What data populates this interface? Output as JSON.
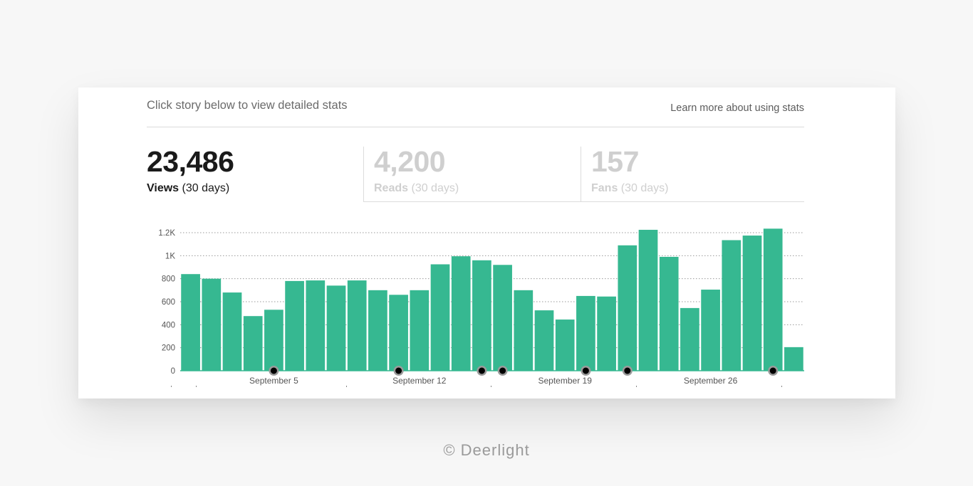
{
  "header": {
    "instruction": "Click story below to view detailed stats",
    "learn_link": "Learn more about using stats"
  },
  "metrics": [
    {
      "value": "23,486",
      "label": "Views",
      "period": "(30 days)"
    },
    {
      "value": "4,200",
      "label": "Reads",
      "period": "(30 days)"
    },
    {
      "value": "157",
      "label": "Fans",
      "period": "(30 days)"
    }
  ],
  "colors": {
    "bar": "#36b891",
    "marker": "#000000"
  },
  "chart_data": {
    "type": "bar",
    "ylim": [
      0,
      1200
    ],
    "yticks": [
      "0",
      "200",
      "400",
      "600",
      "800",
      "1K",
      "1.2K"
    ],
    "grid": true,
    "values": [
      840,
      800,
      680,
      475,
      530,
      780,
      785,
      740,
      785,
      700,
      660,
      700,
      925,
      995,
      960,
      920,
      700,
      525,
      445,
      650,
      645,
      1090,
      1225,
      990,
      545,
      705,
      1135,
      1175,
      1235,
      205
    ],
    "x_labels": [
      {
        "label": "September 5",
        "bar": 4
      },
      {
        "label": "September 12",
        "bar": 11
      },
      {
        "label": "September 19",
        "bar": 18
      },
      {
        "label": "September 26",
        "bar": 25
      }
    ],
    "story_markers": [
      4,
      10,
      14,
      15,
      19,
      21,
      28
    ]
  },
  "footer": "© Deerlight"
}
